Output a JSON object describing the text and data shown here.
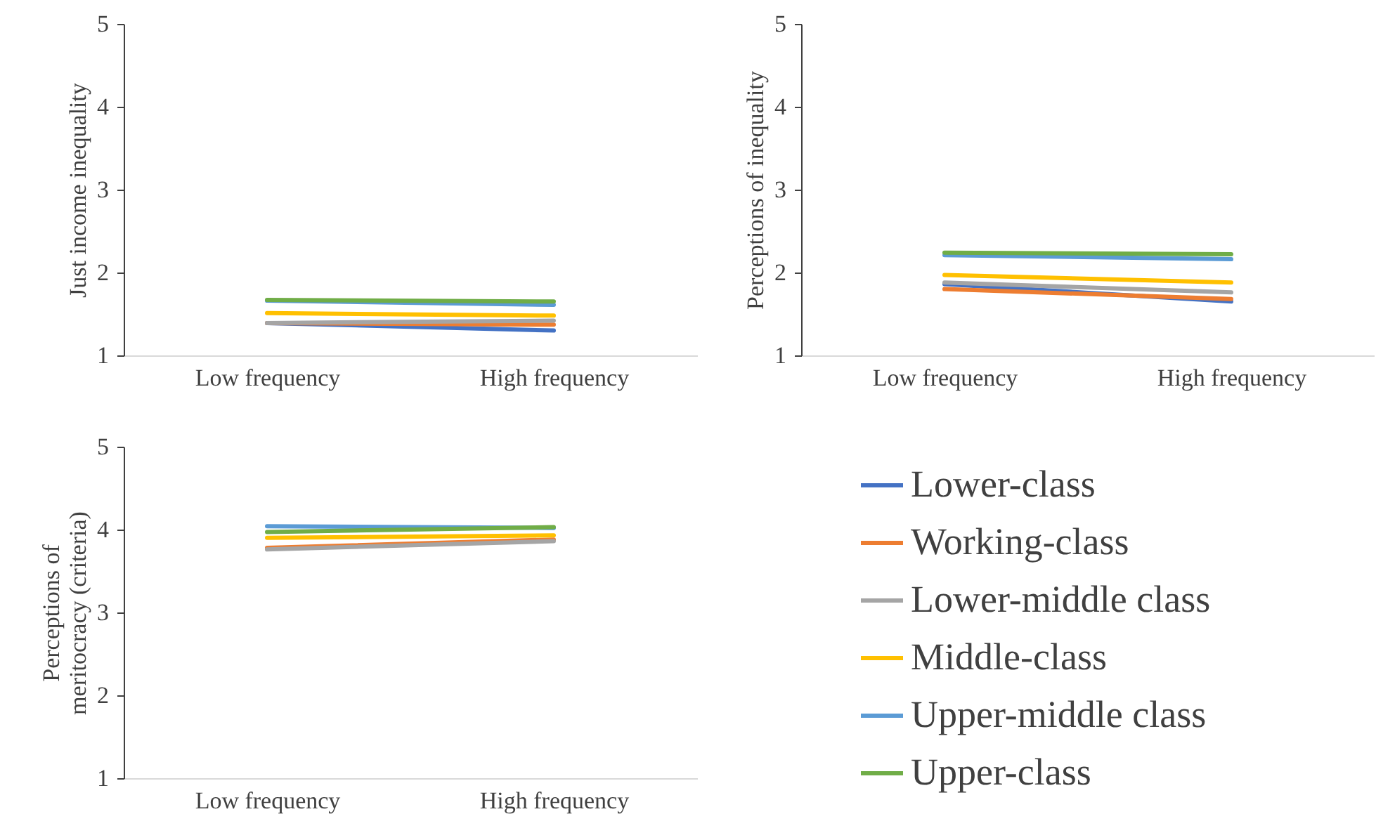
{
  "chart_data": [
    {
      "type": "line",
      "ylabel": "Just income inequality",
      "categories": [
        "Low frequency",
        "High frequency"
      ],
      "ylim": [
        1,
        5
      ],
      "yticks": [
        1,
        2,
        3,
        4,
        5
      ],
      "grid": false,
      "legend": "bottom right",
      "series": [
        {
          "name": "Lower-class",
          "color": "#4472c4",
          "values": [
            1.39,
            1.3
          ]
        },
        {
          "name": "Working-class",
          "color": "#ed7d31",
          "values": [
            1.39,
            1.37
          ]
        },
        {
          "name": "Lower-middle class",
          "color": "#a5a5a5",
          "values": [
            1.39,
            1.42
          ]
        },
        {
          "name": "Middle-class",
          "color": "#ffc000",
          "values": [
            1.51,
            1.48
          ]
        },
        {
          "name": "Upper-middle class",
          "color": "#5b9bd5",
          "values": [
            1.66,
            1.61
          ]
        },
        {
          "name": "Upper-class",
          "color": "#70ad47",
          "values": [
            1.67,
            1.65
          ]
        }
      ]
    },
    {
      "type": "line",
      "ylabel": "Perceptions of inequality",
      "categories": [
        "Low frequency",
        "High frequency"
      ],
      "ylim": [
        1,
        5
      ],
      "yticks": [
        1,
        2,
        3,
        4,
        5
      ],
      "grid": false,
      "legend": "bottom right",
      "series": [
        {
          "name": "Lower-class",
          "color": "#4472c4",
          "values": [
            1.86,
            1.65
          ]
        },
        {
          "name": "Working-class",
          "color": "#ed7d31",
          "values": [
            1.8,
            1.68
          ]
        },
        {
          "name": "Lower-middle class",
          "color": "#a5a5a5",
          "values": [
            1.88,
            1.76
          ]
        },
        {
          "name": "Middle-class",
          "color": "#ffc000",
          "values": [
            1.97,
            1.88
          ]
        },
        {
          "name": "Upper-middle class",
          "color": "#5b9bd5",
          "values": [
            2.21,
            2.16
          ]
        },
        {
          "name": "Upper-class",
          "color": "#70ad47",
          "values": [
            2.24,
            2.22
          ]
        }
      ]
    },
    {
      "type": "line",
      "ylabel": "Perceptions of meritocracy (criteria)",
      "categories": [
        "Low frequency",
        "High frequency"
      ],
      "ylim": [
        1,
        5
      ],
      "yticks": [
        1,
        2,
        3,
        4,
        5
      ],
      "grid": false,
      "legend": "bottom right",
      "series": [
        {
          "name": "Lower-class",
          "color": "#4472c4",
          "values": [
            null,
            null
          ]
        },
        {
          "name": "Working-class",
          "color": "#ed7d31",
          "values": [
            3.78,
            3.88
          ]
        },
        {
          "name": "Lower-middle class",
          "color": "#a5a5a5",
          "values": [
            3.76,
            3.86
          ]
        },
        {
          "name": "Middle-class",
          "color": "#ffc000",
          "values": [
            3.9,
            3.93
          ]
        },
        {
          "name": "Upper-middle class",
          "color": "#5b9bd5",
          "values": [
            4.04,
            4.02
          ]
        },
        {
          "name": "Upper-class",
          "color": "#70ad47",
          "values": [
            3.97,
            4.03
          ]
        }
      ]
    }
  ]
}
